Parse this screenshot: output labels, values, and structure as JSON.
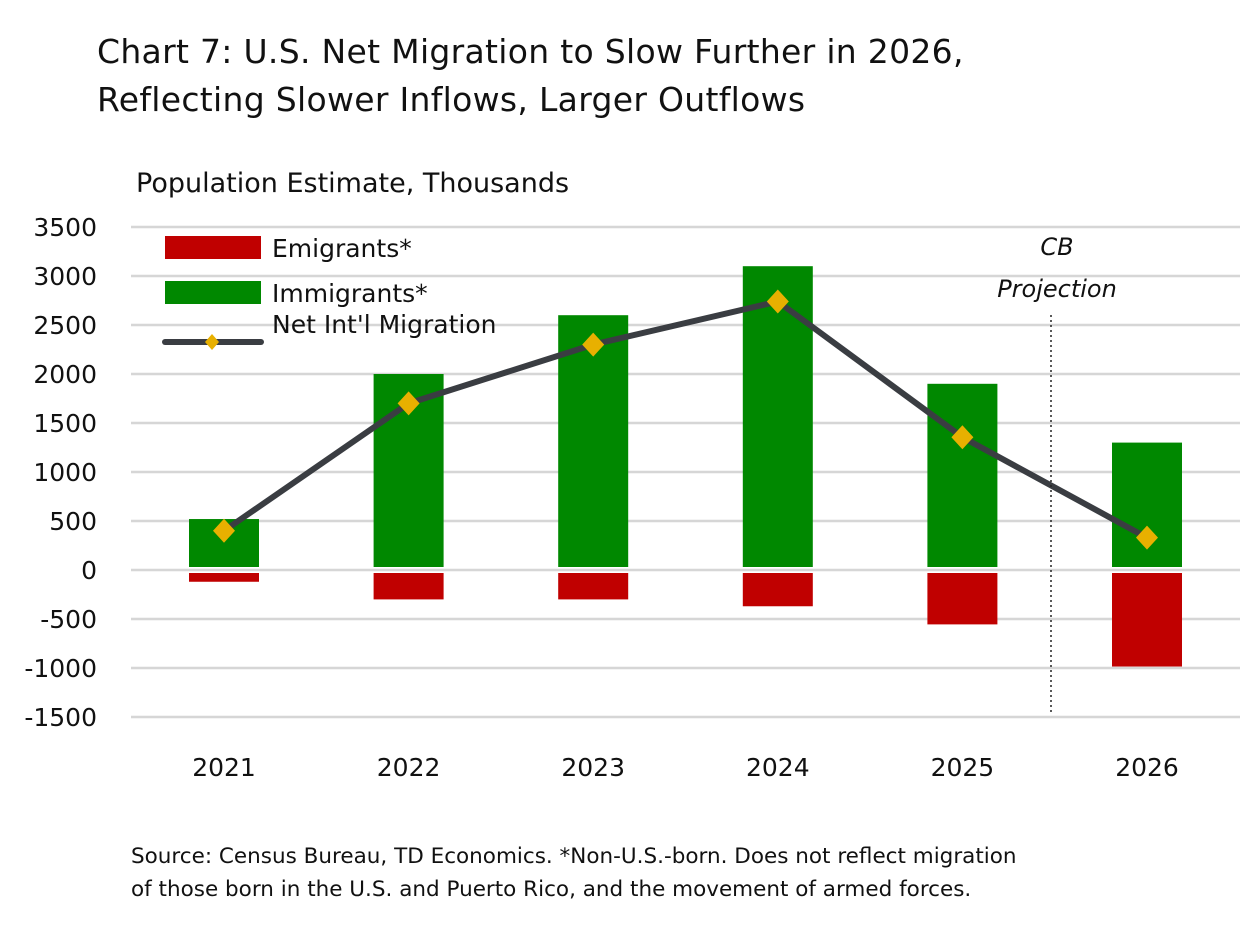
{
  "title_line1": "Chart 7: U.S. Net Migration to Slow Further in 2026,",
  "title_line2": "Reflecting Slower Inflows, Larger Outflows",
  "source_line1": "Source: Census Bureau, TD Economics. *Non-U.S.-born. Does not reflect migration",
  "source_line2": "of those born in the U.S. and Puerto Rico, and the movement of armed forces.",
  "chart_data": {
    "type": "bar",
    "title": "Chart 7: U.S. Net Migration to Slow Further in 2026, Reflecting Slower Inflows, Larger Outflows",
    "ylabel": "Population Estimate, Thousands",
    "xlabel": "",
    "categories": [
      "2021",
      "2022",
      "2023",
      "2024",
      "2025",
      "2026"
    ],
    "ylim": [
      -1500,
      3500
    ],
    "yticks": [
      3500,
      3000,
      2500,
      2000,
      1500,
      1000,
      500,
      0,
      -500,
      -1000,
      -1500
    ],
    "grid": true,
    "legend": "top-left",
    "series": [
      {
        "name": "Emigrants*",
        "type": "bar",
        "color": "#c00000",
        "values": [
          -120,
          -300,
          -300,
          -370,
          -555,
          -985
        ]
      },
      {
        "name": "Immigrants*",
        "type": "bar",
        "color": "#008800",
        "values": [
          520,
          2000,
          2600,
          3100,
          1900,
          1300
        ]
      },
      {
        "name": "Net Int'l Migration",
        "type": "line",
        "color": "#3a3d42",
        "marker_color": "#e8b000",
        "values": [
          400,
          1700,
          2300,
          2740,
          1355,
          330
        ]
      }
    ],
    "annotation": {
      "line1": "CB",
      "line2": "Projection"
    }
  }
}
